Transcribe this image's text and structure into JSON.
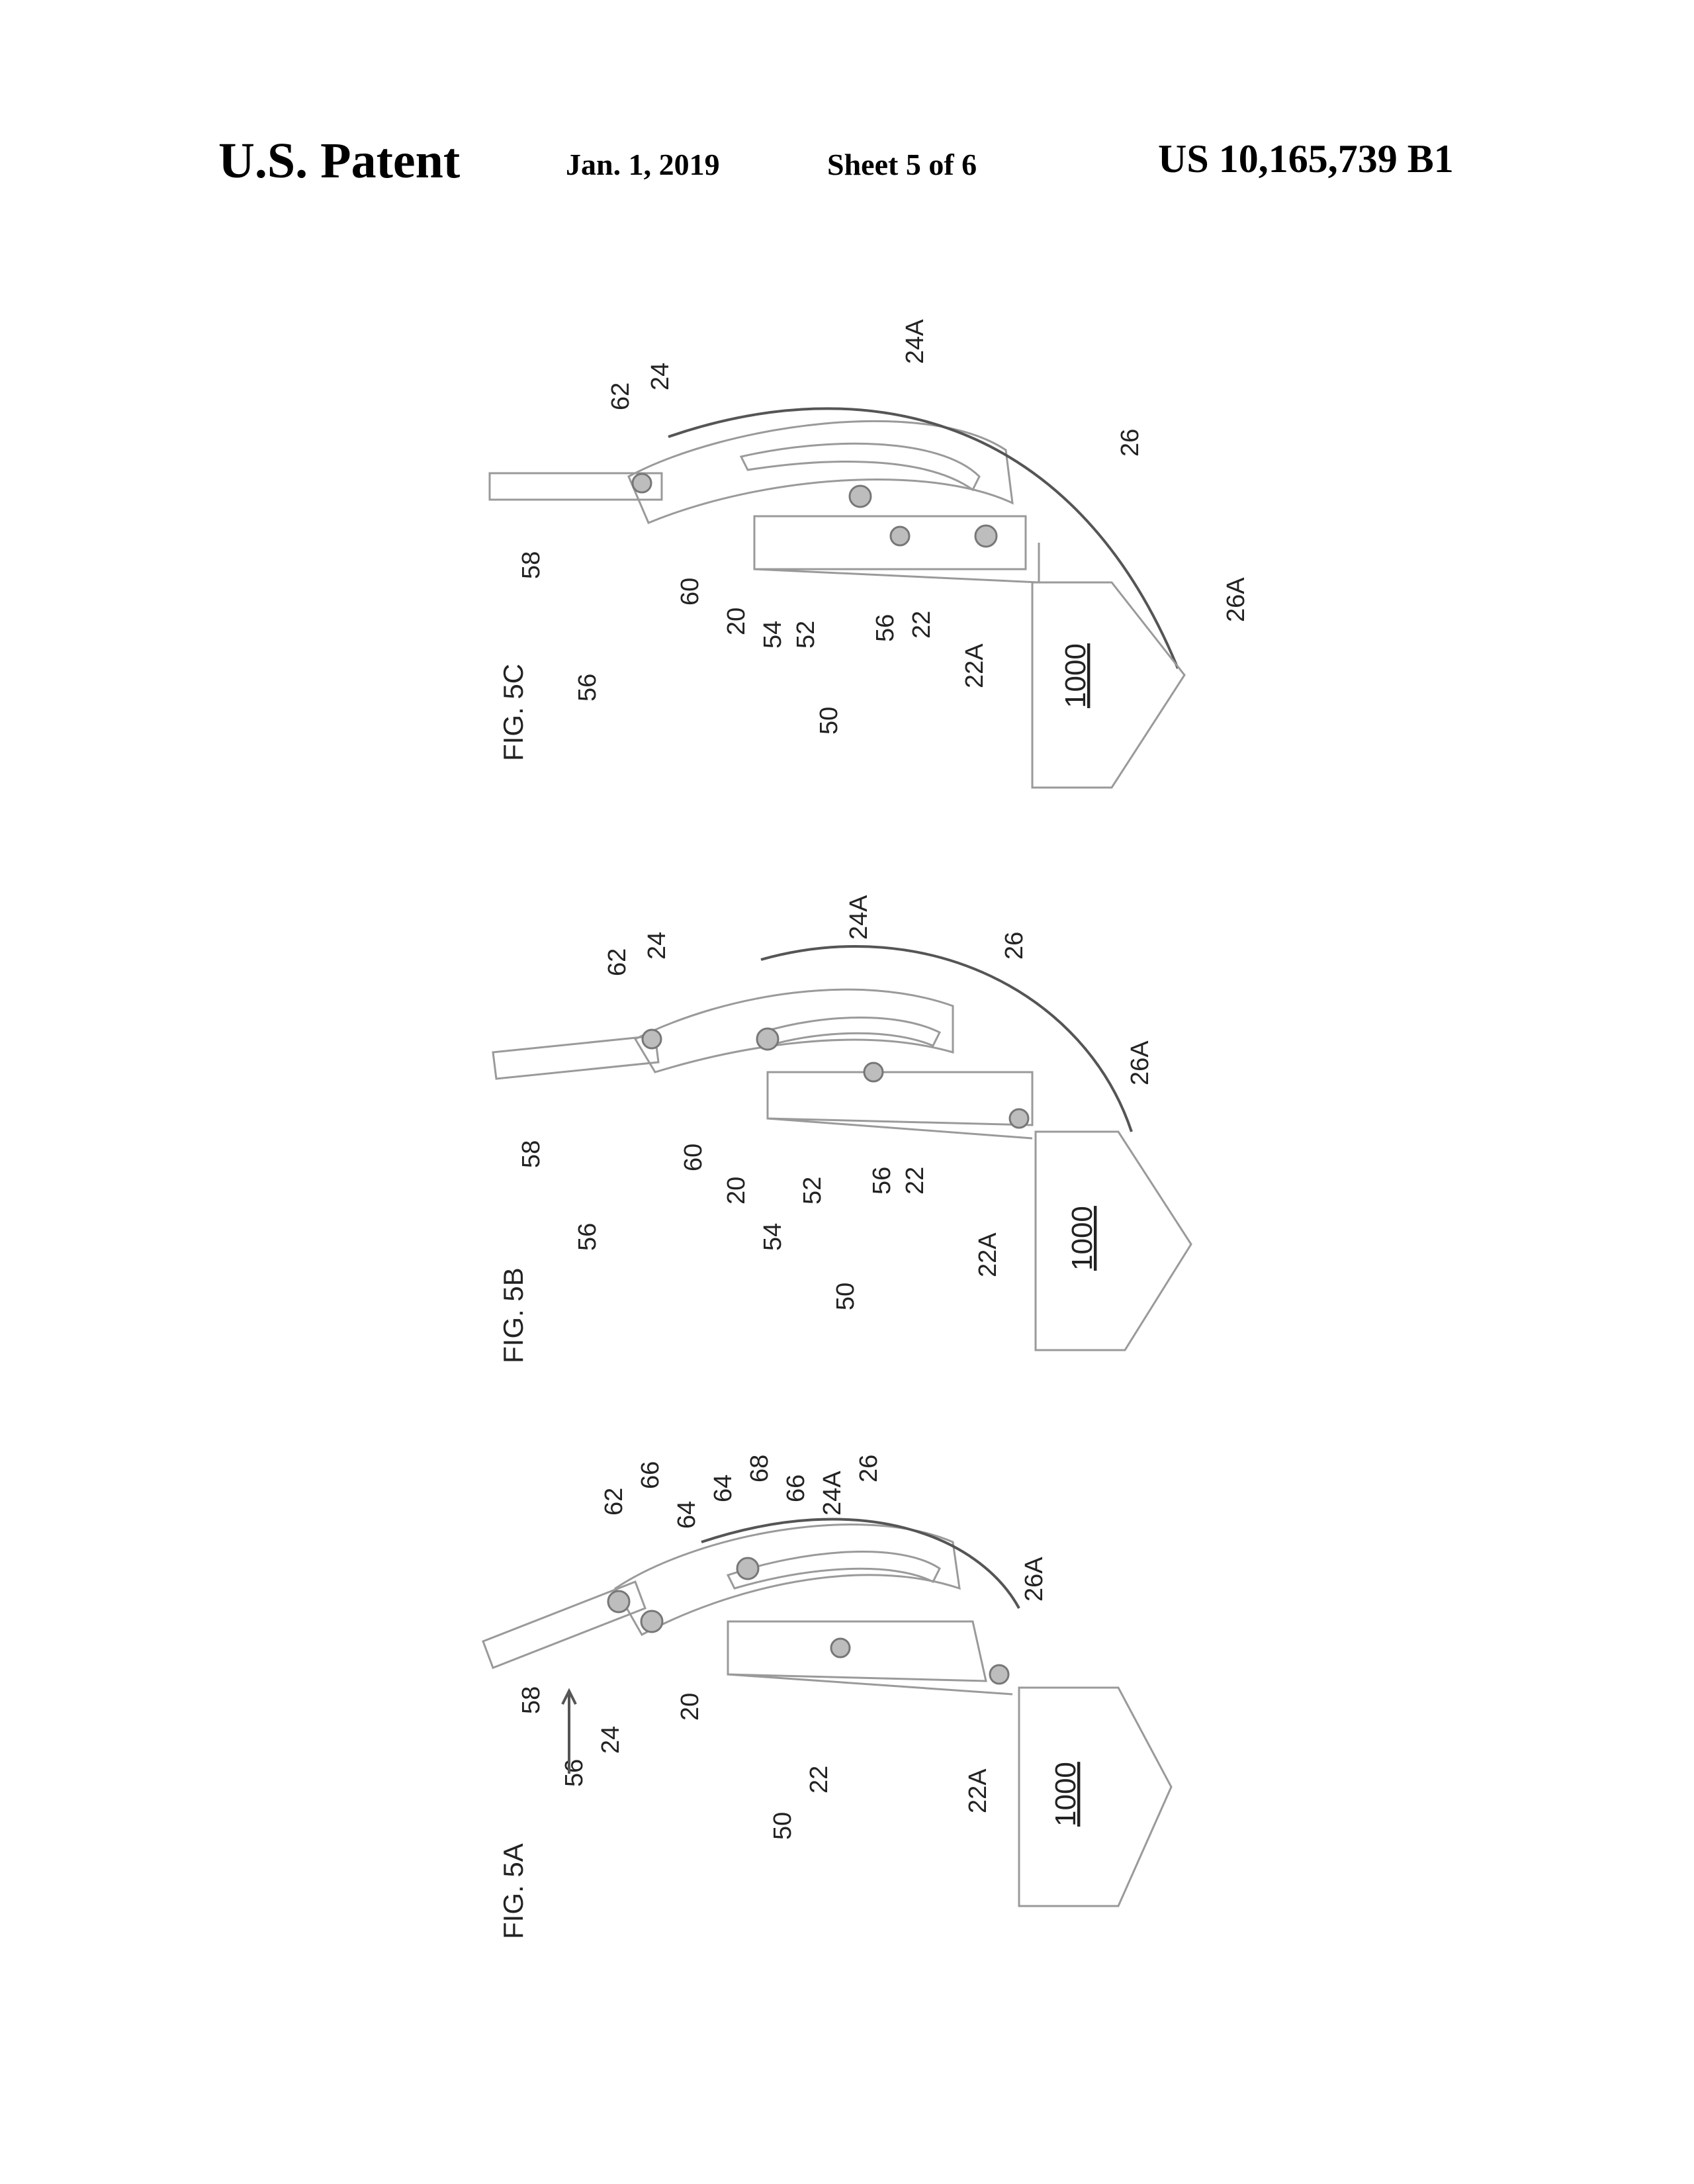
{
  "header": {
    "title": "U.S. Patent",
    "date": "Jan. 1, 2019",
    "sheet": "Sheet 5 of 6",
    "patent_number": "US 10,165,739 B1"
  },
  "figures": [
    {
      "id": "fig5c",
      "title": "FIG. 5C",
      "labels": [
        "62",
        "24",
        "24A",
        "26",
        "26A",
        "58",
        "56",
        "60",
        "20",
        "54",
        "52",
        "56",
        "22",
        "22A",
        "50"
      ],
      "ref": "1000"
    },
    {
      "id": "fig5b",
      "title": "FIG. 5B",
      "labels": [
        "62",
        "24",
        "24A",
        "26",
        "26A",
        "58",
        "56",
        "60",
        "20",
        "52",
        "56",
        "22",
        "22A",
        "54",
        "50"
      ],
      "ref": "1000"
    },
    {
      "id": "fig5a",
      "title": "FIG. 5A",
      "labels": [
        "62",
        "66",
        "64",
        "64",
        "68",
        "66",
        "24A",
        "26",
        "26A",
        "58",
        "24",
        "56",
        "20",
        "22",
        "50",
        "22A"
      ],
      "ref": "1000"
    }
  ]
}
